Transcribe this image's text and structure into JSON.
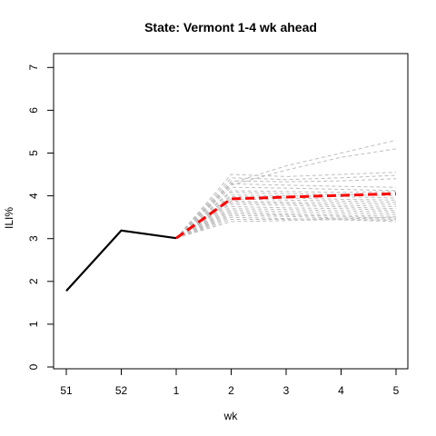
{
  "chart_data": {
    "type": "line",
    "title": "State: Vermont 1-4 wk ahead",
    "xlabel": "wk",
    "ylabel": "ILI%",
    "x_categories": [
      "51",
      "52",
      "1",
      "2",
      "3",
      "4",
      "5"
    ],
    "ylim": [
      0,
      7
    ],
    "yticks": [
      0,
      1,
      2,
      3,
      4,
      5,
      6,
      7
    ],
    "grid": false,
    "legend": "none",
    "colors": {
      "observed": "#000000",
      "mean_forecast": "#ff0000",
      "ensemble": "#bebebe"
    },
    "observed": {
      "x": [
        "51",
        "52",
        "1"
      ],
      "values": [
        1.78,
        3.19,
        3.01
      ]
    },
    "mean_forecast": {
      "x": [
        "1",
        "2",
        "3",
        "4",
        "5"
      ],
      "values": [
        3.01,
        3.93,
        3.97,
        4.01,
        4.05
      ]
    },
    "ensemble": {
      "x": [
        "1",
        "2",
        "3",
        "4",
        "5"
      ],
      "trajectories": [
        [
          3.01,
          4.3,
          4.7,
          5.0,
          5.3
        ],
        [
          3.01,
          4.25,
          4.6,
          4.9,
          5.1
        ],
        [
          3.01,
          4.5,
          4.45,
          4.5,
          4.55
        ],
        [
          3.01,
          4.42,
          4.38,
          4.42,
          4.48
        ],
        [
          3.01,
          4.35,
          4.33,
          4.35,
          4.4
        ],
        [
          3.01,
          4.28,
          4.25,
          4.22,
          4.2
        ],
        [
          3.01,
          4.2,
          4.18,
          4.15,
          4.12
        ],
        [
          3.01,
          4.12,
          4.1,
          4.08,
          4.1
        ],
        [
          3.01,
          4.08,
          4.05,
          4.03,
          4.0
        ],
        [
          3.01,
          4.02,
          4.0,
          3.98,
          3.95
        ],
        [
          3.01,
          3.98,
          3.95,
          3.92,
          3.9
        ],
        [
          3.01,
          3.93,
          3.9,
          3.88,
          3.85
        ],
        [
          3.01,
          3.88,
          3.85,
          3.83,
          3.8
        ],
        [
          3.01,
          3.84,
          3.82,
          3.78,
          3.75
        ],
        [
          3.01,
          3.8,
          3.78,
          3.74,
          3.7
        ],
        [
          3.01,
          3.75,
          3.72,
          3.7,
          3.66
        ],
        [
          3.01,
          3.7,
          3.68,
          3.65,
          3.62
        ],
        [
          3.01,
          3.66,
          3.63,
          3.6,
          3.57
        ],
        [
          3.01,
          3.62,
          3.58,
          3.55,
          3.52
        ],
        [
          3.01,
          3.58,
          3.55,
          3.52,
          3.48
        ],
        [
          3.01,
          3.54,
          3.52,
          3.48,
          3.45
        ],
        [
          3.01,
          3.5,
          3.47,
          3.44,
          3.4
        ],
        [
          3.01,
          3.45,
          3.45,
          3.48,
          3.5
        ],
        [
          3.01,
          3.4,
          3.42,
          3.45,
          3.43
        ]
      ]
    }
  }
}
